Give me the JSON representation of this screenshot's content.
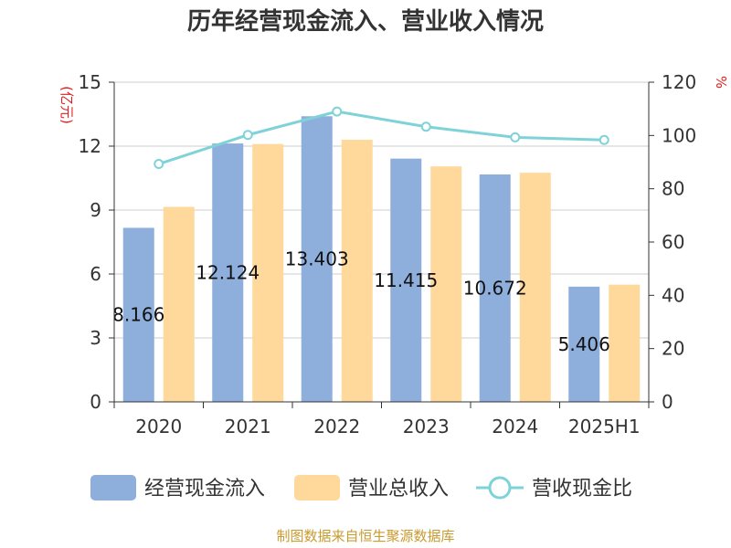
{
  "chart_data": {
    "type": "bar",
    "title": "历年经营现金流入、营业收入情况",
    "categories": [
      "2020",
      "2021",
      "2022",
      "2023",
      "2024",
      "2025H1"
    ],
    "series": [
      {
        "name": "经营现金流入",
        "type": "bar",
        "axis": "left",
        "values": [
          8.166,
          12.124,
          13.403,
          11.415,
          10.672,
          5.406
        ],
        "labels": [
          "8.166",
          "12.124",
          "13.403",
          "11.415",
          "10.672",
          "5.406"
        ]
      },
      {
        "name": "营业总收入",
        "type": "bar",
        "axis": "left",
        "values": [
          9.15,
          12.1,
          12.3,
          11.05,
          10.75,
          5.5
        ]
      },
      {
        "name": "营收现金比",
        "type": "line",
        "axis": "right",
        "values": [
          89.3,
          100.2,
          109.0,
          103.3,
          99.3,
          98.3
        ]
      }
    ],
    "y_left": {
      "label": "(亿元)",
      "ylim": [
        0,
        15
      ],
      "ticks": [
        0,
        3,
        6,
        9,
        12,
        15
      ]
    },
    "y_right": {
      "label": "%",
      "ylim": [
        0,
        120
      ],
      "ticks": [
        0,
        20,
        40,
        60,
        80,
        100,
        120
      ]
    },
    "grid": true,
    "legend_position": "bottom"
  },
  "colors": {
    "cash_inflow": "#8eaedc",
    "revenue": "#fed99b",
    "ratio": "#7fd3d8",
    "axis": "#333333",
    "grid": "#cccccc",
    "unit": "#e02020",
    "source": "#c99a2e"
  },
  "source": "制图数据来自恒生聚源数据库"
}
